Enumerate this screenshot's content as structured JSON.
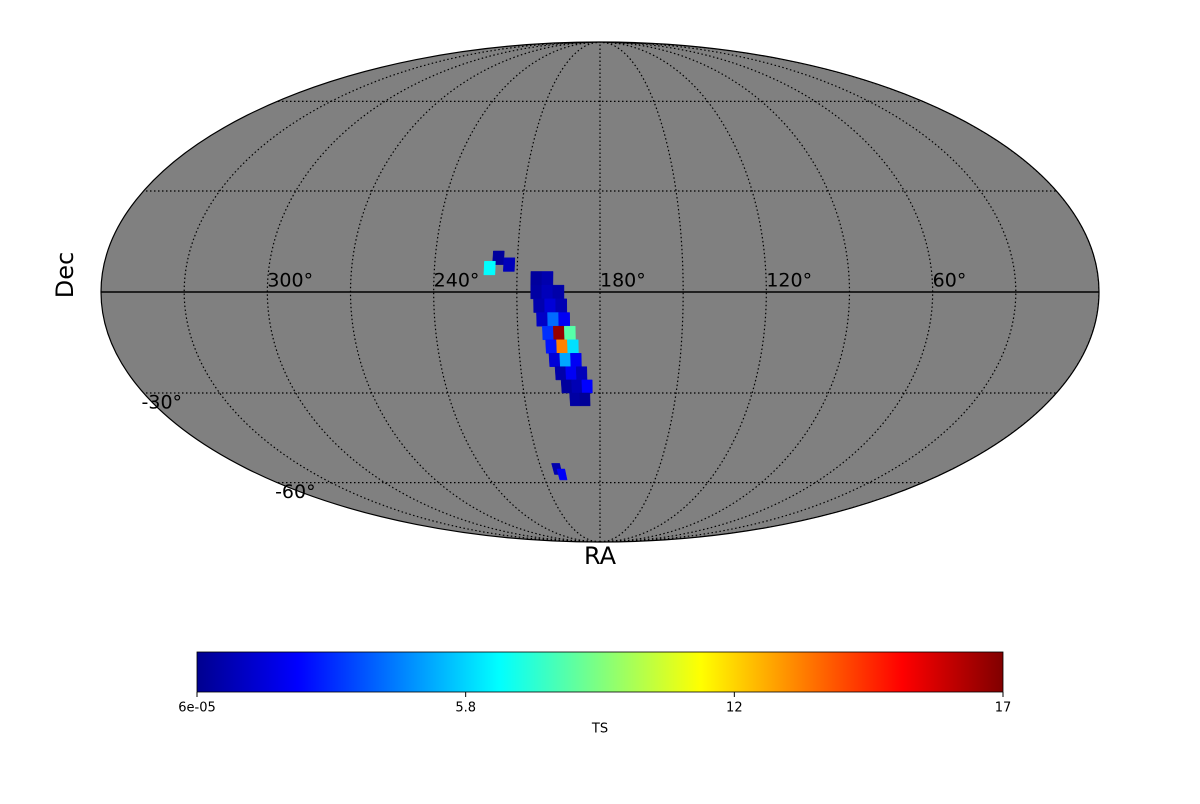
{
  "chart_data": {
    "type": "mollweide",
    "xlabel": "RA",
    "ylabel": "Dec",
    "background_color": "#808080",
    "meridians": [
      0,
      30,
      60,
      90,
      120,
      150,
      180,
      210,
      240,
      270,
      300,
      330
    ],
    "parallels": [
      -60,
      -30,
      0,
      30,
      60
    ],
    "ra_ticks": [
      {
        "value": 300,
        "label": "300°"
      },
      {
        "value": 240,
        "label": "240°"
      },
      {
        "value": 180,
        "label": "180°"
      },
      {
        "value": 120,
        "label": "120°"
      },
      {
        "value": 60,
        "label": "60°"
      }
    ],
    "dec_ticks": [
      {
        "value": -30,
        "label": "-30°"
      },
      {
        "value": -60,
        "label": "-60°"
      }
    ],
    "cell_size": 4,
    "cells": {
      "ra": [
        203,
        199,
        203,
        199,
        195,
        202,
        198,
        194,
        201,
        197,
        193,
        199,
        195,
        191,
        198,
        194,
        190,
        197,
        193,
        189,
        195,
        191,
        187,
        193,
        189,
        185,
        190,
        186,
        217,
        213,
        220,
        202,
        200
      ],
      "dec": [
        4,
        4,
        0,
        0,
        0,
        -4,
        -4,
        -4,
        -8,
        -8,
        -8,
        -12,
        -12,
        -12,
        -16,
        -16,
        -16,
        -20,
        -20,
        -20,
        -24,
        -24,
        -24,
        -28,
        -28,
        -28,
        -32,
        -32,
        10,
        8,
        7,
        -55,
        -57
      ],
      "ts": [
        0.5,
        0.8,
        0.6,
        1,
        0.7,
        0.8,
        1.5,
        0.9,
        1.2,
        4,
        2,
        3,
        17,
        8,
        2.5,
        13,
        6,
        1.5,
        5,
        2,
        0.7,
        2,
        1,
        0.5,
        0.9,
        2.2,
        0.6,
        0.4,
        0.5,
        1.0,
        6.5,
        0.8,
        2
      ]
    },
    "colorbar": {
      "label": "TS",
      "lim": [
        6e-05,
        17.4
      ],
      "colormap": "jet",
      "ticks": [
        {
          "value": 6e-05,
          "label": "6e-05"
        },
        {
          "value": 5.8,
          "label": "5.8"
        },
        {
          "value": 11.6,
          "label": "12"
        },
        {
          "value": 17.4,
          "label": "17"
        }
      ]
    }
  }
}
